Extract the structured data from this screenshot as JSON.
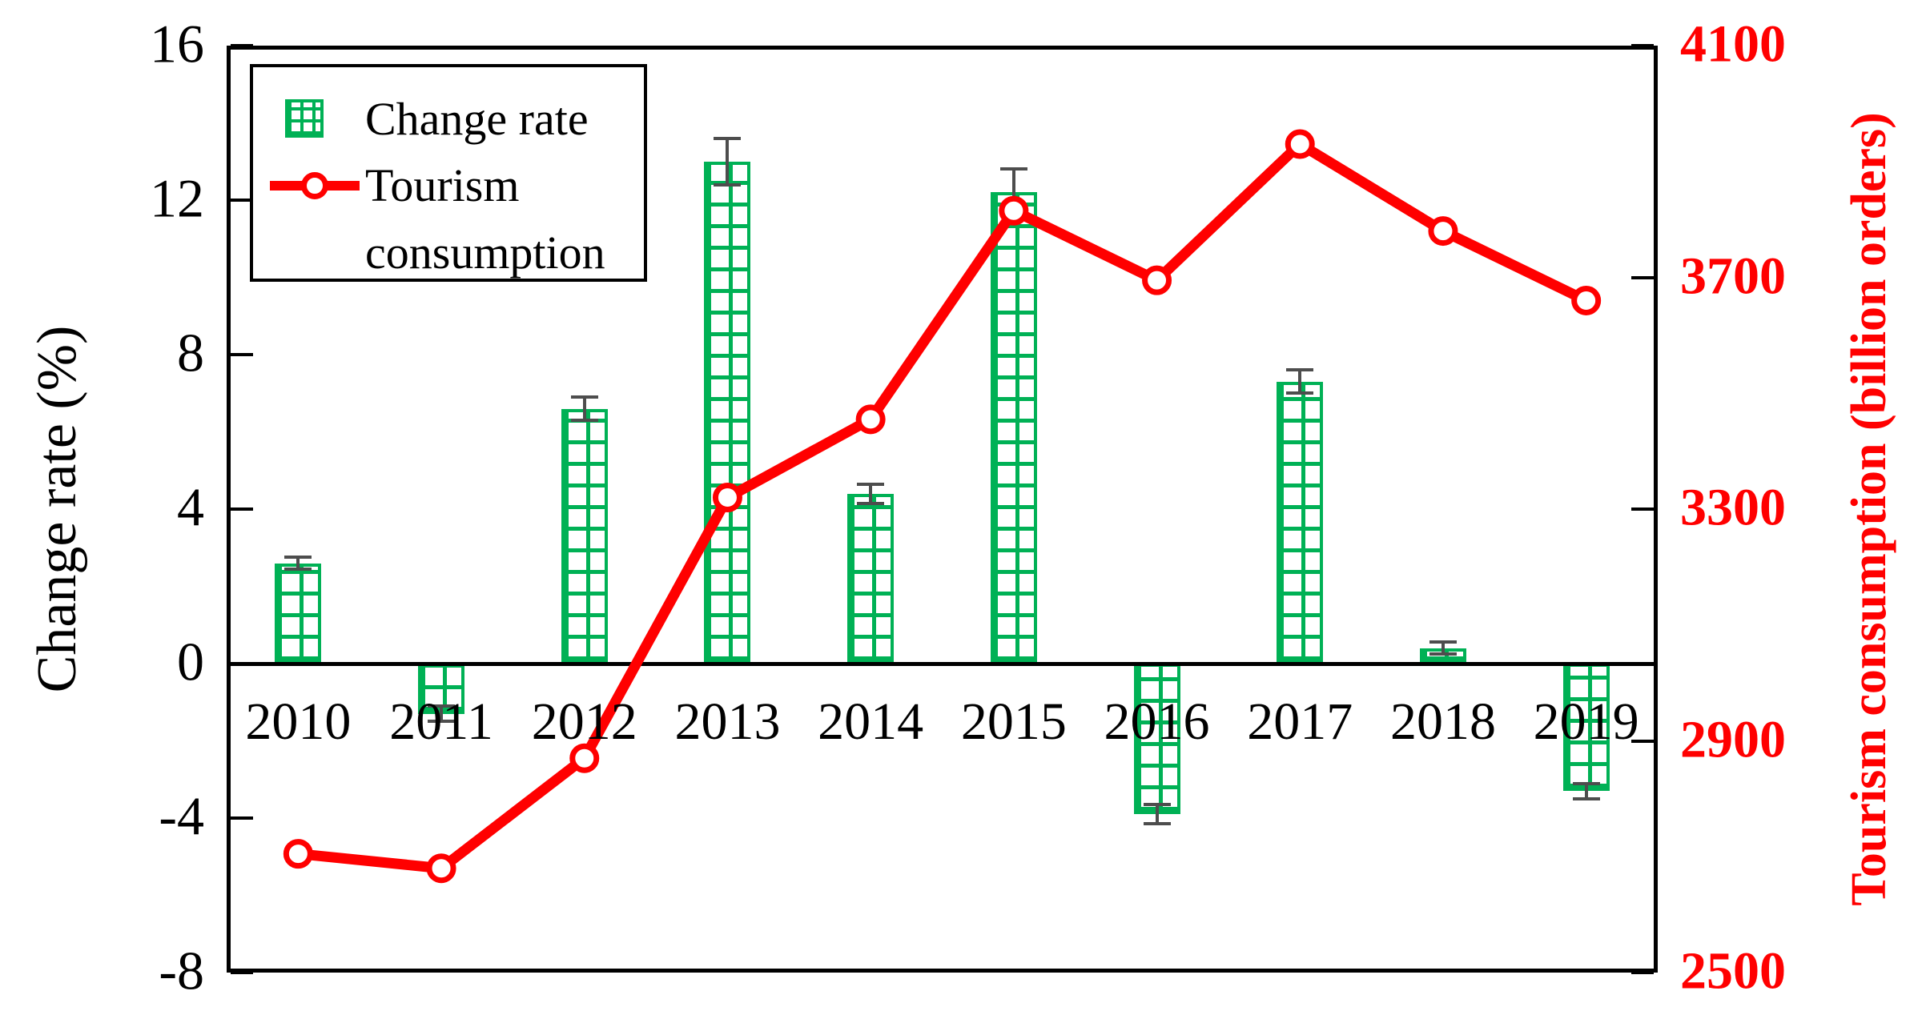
{
  "figure": {
    "background": "#ffffff",
    "description": "Dual-axis combination chart: green hatched bars (change rate, left axis) and red line with open circle markers (tourism consumption, right axis), years 2010-2019"
  },
  "chart_data": {
    "type": "bar+line",
    "categories": [
      "2010",
      "2011",
      "2012",
      "2013",
      "2014",
      "2015",
      "2016",
      "2017",
      "2018",
      "2019"
    ],
    "series": [
      {
        "name": "Change rate",
        "type": "bar",
        "axis": "left",
        "values": [
          2.6,
          -1.3,
          6.6,
          13.0,
          4.4,
          12.2,
          -3.9,
          7.3,
          0.4,
          -3.3
        ],
        "errors": [
          0.15,
          0.2,
          0.3,
          0.6,
          0.25,
          0.6,
          0.25,
          0.3,
          0.15,
          0.2
        ]
      },
      {
        "name": "Tourism consumption",
        "type": "line",
        "axis": "right",
        "values": [
          2705,
          2680,
          2870,
          3320,
          3455,
          3815,
          3695,
          3930,
          3780,
          3660
        ]
      }
    ],
    "left_axis": {
      "label": "Change rate (%)",
      "ticks": [
        "16",
        "12",
        "8",
        "4",
        "0",
        "-4",
        "-8"
      ],
      "min": -8,
      "max": 16,
      "color": "#000000"
    },
    "right_axis": {
      "label": "Tourism consumption (billion orders)",
      "ticks": [
        "4100",
        "3700",
        "3300",
        "2900",
        "2500"
      ],
      "min": 2500,
      "max": 4100,
      "color": "#ff0000"
    },
    "legend": {
      "position": "top-left",
      "items": [
        {
          "label": "Change rate",
          "marker": "green-hatched-square"
        },
        {
          "label_line1": "Tourism",
          "label_line2": "consumption",
          "marker": "red-line-open-circle"
        }
      ]
    },
    "colors": {
      "bar": "#00b155",
      "line": "#ff0000",
      "error_bar": "#4d4d4d",
      "frame": "#000000"
    },
    "grid": false,
    "baseline": 0
  }
}
